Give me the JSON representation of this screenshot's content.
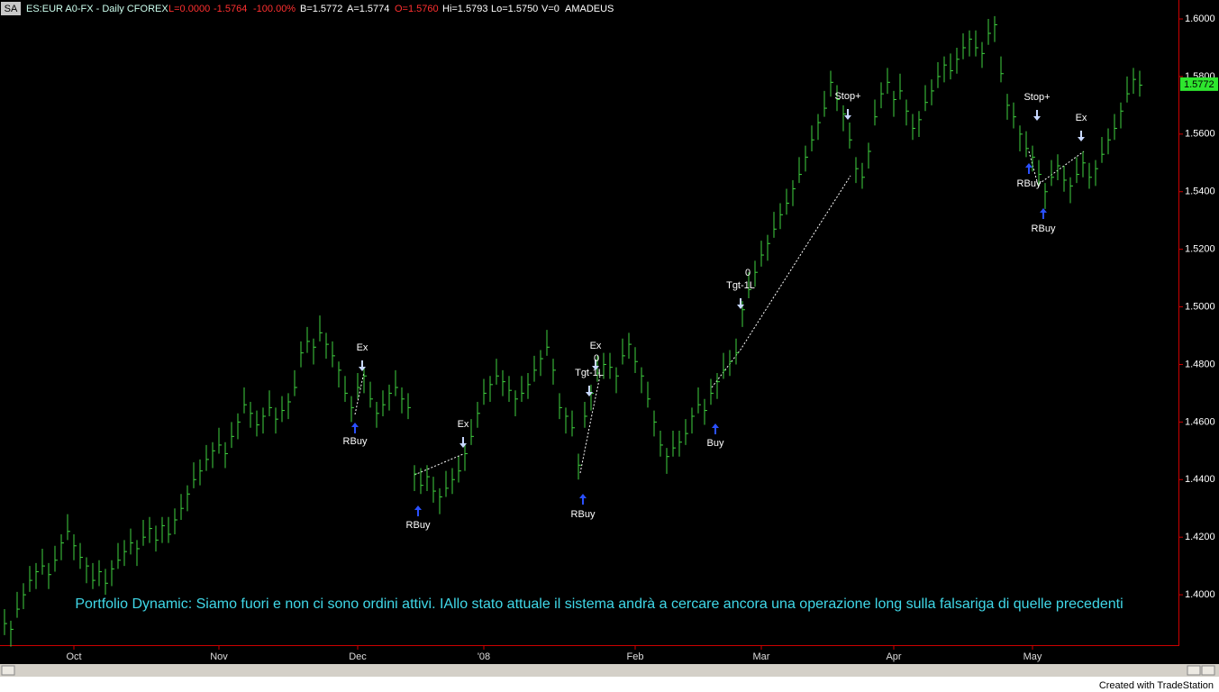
{
  "header": {
    "symbol_box": "SA",
    "title": "ES:EUR A0-FX - Daily  CFOREX",
    "last": "L=0.0000",
    "change": "-1.5764",
    "change_pct": "-100.00%",
    "bid": "B=1.5772",
    "ask": "A=1.5774",
    "open": "O=1.5760",
    "high": "Hi=1.5793",
    "low": "Lo=1.5750",
    "volume": "V=0",
    "account": "AMADEUS"
  },
  "chart_data": {
    "type": "ohlc",
    "color": "#3fd23f",
    "categories": [
      null,
      null,
      null,
      null,
      null,
      null,
      null,
      null,
      null,
      null,
      null,
      "Oct",
      null,
      null,
      null,
      null,
      null,
      null,
      null,
      null,
      null,
      null,
      null,
      null,
      null,
      null,
      null,
      null,
      null,
      null,
      null,
      null,
      null,
      null,
      "Nov",
      null,
      null,
      null,
      null,
      null,
      null,
      null,
      null,
      null,
      null,
      null,
      null,
      null,
      null,
      null,
      null,
      null,
      null,
      null,
      null,
      null,
      "Dec",
      null,
      null,
      null,
      null,
      null,
      null,
      null,
      null,
      null,
      null,
      null,
      null,
      null,
      null,
      null,
      null,
      null,
      null,
      null,
      "'08",
      null,
      null,
      null,
      null,
      null,
      null,
      null,
      null,
      null,
      null,
      null,
      null,
      null,
      null,
      null,
      null,
      null,
      null,
      null,
      null,
      null,
      null,
      null,
      "Feb",
      null,
      null,
      null,
      null,
      null,
      null,
      null,
      null,
      null,
      null,
      null,
      null,
      null,
      null,
      null,
      null,
      null,
      null,
      null,
      "Mar",
      null,
      null,
      null,
      null,
      null,
      null,
      null,
      null,
      null,
      null,
      null,
      null,
      null,
      null,
      null,
      null,
      null,
      null,
      null,
      null,
      "Apr",
      null,
      null,
      null,
      null,
      null,
      null,
      null,
      null,
      null,
      null,
      null,
      null,
      null,
      null,
      null,
      null,
      null,
      null,
      null,
      null,
      null,
      "May",
      null,
      null,
      null,
      null,
      null,
      null,
      null,
      null,
      null,
      null,
      null,
      null,
      null,
      null,
      null,
      null,
      null
    ],
    "high": [
      1.395,
      1.391,
      1.401,
      1.404,
      1.41,
      1.411,
      1.416,
      1.411,
      1.417,
      1.421,
      1.428,
      1.421,
      1.418,
      1.413,
      1.411,
      1.412,
      1.409,
      1.412,
      1.418,
      1.419,
      1.423,
      1.419,
      1.426,
      1.427,
      1.424,
      1.427,
      1.427,
      1.43,
      1.435,
      1.438,
      1.446,
      1.447,
      1.452,
      1.453,
      1.458,
      1.453,
      1.46,
      1.463,
      1.472,
      1.467,
      1.464,
      1.465,
      1.471,
      1.465,
      1.469,
      1.47,
      1.478,
      1.488,
      1.493,
      1.489,
      1.497,
      1.491,
      1.488,
      1.481,
      1.476,
      1.469,
      1.477,
      1.479,
      1.474,
      1.467,
      1.471,
      1.473,
      1.478,
      1.472,
      1.47,
      1.445,
      1.444,
      1.445,
      1.441,
      1.437,
      1.443,
      1.444,
      1.448,
      1.452,
      1.461,
      1.467,
      1.475,
      1.476,
      1.482,
      1.478,
      1.476,
      1.471,
      1.476,
      1.477,
      1.483,
      1.485,
      1.492,
      1.482,
      1.47,
      1.465,
      1.464,
      1.449,
      1.467,
      1.473,
      1.483,
      1.484,
      1.484,
      1.479,
      1.489,
      1.491,
      1.486,
      1.479,
      1.474,
      1.464,
      1.457,
      1.451,
      1.457,
      1.457,
      1.461,
      1.465,
      1.472,
      1.468,
      1.475,
      1.477,
      1.484,
      1.485,
      1.489,
      1.502,
      1.512,
      1.516,
      1.523,
      1.525,
      1.533,
      1.536,
      1.541,
      1.544,
      1.552,
      1.556,
      1.563,
      1.567,
      1.575,
      1.582,
      1.577,
      1.57,
      1.564,
      1.552,
      1.55,
      1.557,
      1.572,
      1.578,
      1.583,
      1.575,
      1.581,
      1.572,
      1.567,
      1.568,
      1.577,
      1.579,
      1.585,
      1.587,
      1.588,
      1.59,
      1.595,
      1.596,
      1.596,
      1.592,
      1.6,
      1.601,
      1.587,
      1.574,
      1.571,
      1.563,
      1.561,
      1.556,
      1.551,
      1.543,
      1.551,
      1.553,
      1.549,
      1.545,
      1.552,
      1.554,
      1.55,
      1.551,
      1.559,
      1.562,
      1.567,
      1.571,
      1.58,
      1.583,
      1.582
    ],
    "low": [
      1.386,
      1.382,
      1.392,
      1.395,
      1.401,
      1.402,
      1.407,
      1.402,
      1.408,
      1.412,
      1.419,
      1.412,
      1.409,
      1.404,
      1.402,
      1.403,
      1.4,
      1.403,
      1.409,
      1.41,
      1.414,
      1.41,
      1.417,
      1.418,
      1.415,
      1.418,
      1.418,
      1.421,
      1.426,
      1.429,
      1.437,
      1.438,
      1.443,
      1.444,
      1.449,
      1.444,
      1.451,
      1.454,
      1.463,
      1.458,
      1.455,
      1.456,
      1.462,
      1.456,
      1.46,
      1.461,
      1.469,
      1.479,
      1.484,
      1.48,
      1.488,
      1.482,
      1.479,
      1.472,
      1.467,
      1.46,
      1.468,
      1.47,
      1.465,
      1.458,
      1.462,
      1.464,
      1.469,
      1.463,
      1.461,
      1.436,
      1.435,
      1.436,
      1.432,
      1.428,
      1.434,
      1.435,
      1.439,
      1.443,
      1.452,
      1.458,
      1.466,
      1.467,
      1.473,
      1.469,
      1.467,
      1.462,
      1.467,
      1.468,
      1.474,
      1.476,
      1.483,
      1.473,
      1.461,
      1.456,
      1.455,
      1.44,
      1.458,
      1.464,
      1.474,
      1.475,
      1.475,
      1.47,
      1.48,
      1.482,
      1.477,
      1.47,
      1.465,
      1.455,
      1.448,
      1.442,
      1.448,
      1.448,
      1.452,
      1.456,
      1.463,
      1.459,
      1.466,
      1.468,
      1.475,
      1.476,
      1.48,
      1.493,
      1.503,
      1.507,
      1.514,
      1.516,
      1.524,
      1.527,
      1.532,
      1.535,
      1.543,
      1.547,
      1.554,
      1.558,
      1.566,
      1.573,
      1.568,
      1.561,
      1.555,
      1.543,
      1.541,
      1.548,
      1.563,
      1.569,
      1.574,
      1.566,
      1.572,
      1.563,
      1.558,
      1.559,
      1.568,
      1.57,
      1.576,
      1.578,
      1.579,
      1.581,
      1.586,
      1.587,
      1.587,
      1.583,
      1.591,
      1.592,
      1.578,
      1.565,
      1.562,
      1.554,
      1.552,
      1.547,
      1.542,
      1.534,
      1.542,
      1.544,
      1.54,
      1.536,
      1.543,
      1.545,
      1.541,
      1.542,
      1.55,
      1.553,
      1.558,
      1.562,
      1.571,
      1.574,
      1.573
    ],
    "close": [
      1.39,
      1.388,
      1.395,
      1.4,
      1.405,
      1.408,
      1.41,
      1.407,
      1.412,
      1.418,
      1.422,
      1.417,
      1.413,
      1.41,
      1.405,
      1.408,
      1.404,
      1.409,
      1.412,
      1.415,
      1.418,
      1.416,
      1.42,
      1.423,
      1.419,
      1.424,
      1.421,
      1.426,
      1.43,
      1.435,
      1.44,
      1.443,
      1.447,
      1.45,
      1.452,
      1.449,
      1.455,
      1.46,
      1.466,
      1.463,
      1.459,
      1.462,
      1.465,
      1.461,
      1.464,
      1.467,
      1.472,
      1.484,
      1.488,
      1.486,
      1.491,
      1.487,
      1.483,
      1.478,
      1.47,
      1.465,
      1.472,
      1.476,
      1.468,
      1.463,
      1.466,
      1.47,
      1.472,
      1.468,
      1.465,
      1.442,
      1.438,
      1.441,
      1.436,
      1.434,
      1.437,
      1.44,
      1.443,
      1.449,
      1.455,
      1.463,
      1.47,
      1.473,
      1.476,
      1.474,
      1.471,
      1.468,
      1.47,
      1.473,
      1.478,
      1.482,
      1.486,
      1.478,
      1.465,
      1.462,
      1.458,
      1.445,
      1.462,
      1.47,
      1.477,
      1.48,
      1.479,
      1.476,
      1.483,
      1.487,
      1.481,
      1.476,
      1.468,
      1.46,
      1.452,
      1.448,
      1.451,
      1.453,
      1.456,
      1.462,
      1.466,
      1.464,
      1.47,
      1.474,
      1.478,
      1.481,
      1.484,
      1.499,
      1.506,
      1.512,
      1.518,
      1.522,
      1.527,
      1.532,
      1.536,
      1.541,
      1.546,
      1.552,
      1.558,
      1.564,
      1.569,
      1.578,
      1.572,
      1.567,
      1.558,
      1.548,
      1.545,
      1.554,
      1.566,
      1.574,
      1.578,
      1.572,
      1.575,
      1.568,
      1.562,
      1.565,
      1.571,
      1.575,
      1.58,
      1.584,
      1.582,
      1.586,
      1.59,
      1.593,
      1.59,
      1.588,
      1.595,
      1.598,
      1.581,
      1.57,
      1.566,
      1.56,
      1.555,
      1.552,
      1.546,
      1.54,
      1.545,
      1.549,
      1.544,
      1.542,
      1.546,
      1.55,
      1.545,
      1.548,
      1.553,
      1.558,
      1.562,
      1.568,
      1.574,
      1.579,
      1.577
    ],
    "ylim": [
      1.3825,
      1.6022
    ],
    "yticks": [
      {
        "value": 1.4,
        "label": "1.4000"
      },
      {
        "value": 1.42,
        "label": "1.4200"
      },
      {
        "value": 1.44,
        "label": "1.4400"
      },
      {
        "value": 1.46,
        "label": "1.4600"
      },
      {
        "value": 1.48,
        "label": "1.4800"
      },
      {
        "value": 1.5,
        "label": "1.5000"
      },
      {
        "value": 1.52,
        "label": "1.5200"
      },
      {
        "value": 1.54,
        "label": "1.5400"
      },
      {
        "value": 1.56,
        "label": "1.5600"
      },
      {
        "value": 1.58,
        "label": "1.5800"
      },
      {
        "value": 1.6,
        "label": "1.6000"
      }
    ],
    "last_price": {
      "value": 1.5772,
      "label": "1.5772"
    },
    "annotation": "Portfolio Dynamic: Siamo fuori e non ci sono ordini attivi. IAllo stato attuale il sistema andrà a cercare ancora una operazione long sulla falsariga di quelle precedenti",
    "signals": [
      "RBuy",
      "Ex",
      "RBuy",
      "Ex",
      "RBuy",
      "Tgt-1L",
      "Ex",
      "0",
      "Buy",
      "Tgt-1L",
      "0",
      "Stop+",
      "RBuy",
      "RBuy",
      "Stop+",
      "Ex"
    ]
  },
  "footer": "Created with TradeStation"
}
